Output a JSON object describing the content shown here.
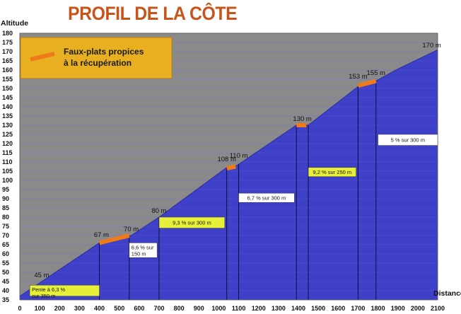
{
  "chart_data": {
    "type": "area",
    "title": "PROFIL DE LA CÔTE",
    "ylabel": "Altitude",
    "xlabel": "Distance",
    "xlim": [
      0,
      2100
    ],
    "ylim": [
      35,
      180
    ],
    "x_ticks": [
      "0",
      "100",
      "200",
      "300",
      "400",
      "500",
      "600",
      "700",
      "800",
      "900",
      "1000",
      "1100",
      "1200",
      "1300",
      "1400",
      "1500",
      "1600",
      "1700",
      "1800",
      "1900",
      "2000",
      "2100"
    ],
    "y_ticks": [
      "35",
      "40",
      "45",
      "50",
      "55",
      "60",
      "65",
      "70",
      "75",
      "80",
      "85",
      "90",
      "95",
      "100",
      "105",
      "110",
      "115",
      "120",
      "125",
      "130",
      "135",
      "140",
      "145",
      "150",
      "155",
      "160",
      "165",
      "170",
      "175",
      "180"
    ],
    "profile": [
      {
        "x": 0,
        "y": 37
      },
      {
        "x": 110,
        "y": 45
      },
      {
        "x": 400,
        "y": 66
      },
      {
        "x": 440,
        "y": 67
      },
      {
        "x": 560,
        "y": 70
      },
      {
        "x": 700,
        "y": 80
      },
      {
        "x": 1040,
        "y": 107
      },
      {
        "x": 1090,
        "y": 108
      },
      {
        "x": 1390,
        "y": 130
      },
      {
        "x": 1450,
        "y": 130
      },
      {
        "x": 1700,
        "y": 151
      },
      {
        "x": 1790,
        "y": 154
      },
      {
        "x": 1890,
        "y": 160
      },
      {
        "x": 2100,
        "y": 171
      }
    ],
    "segment_boundaries_x": [
      400,
      550,
      700,
      1040,
      1100,
      1390,
      1450,
      1700,
      1790
    ],
    "flats": [
      {
        "x1": 400,
        "y1": 66,
        "x2": 550,
        "y2": 70
      },
      {
        "x1": 1040,
        "y1": 106.5,
        "x2": 1085,
        "y2": 107.5
      },
      {
        "x1": 1390,
        "y1": 130,
        "x2": 1440,
        "y2": 130
      },
      {
        "x1": 1700,
        "y1": 151.5,
        "x2": 1790,
        "y2": 154
      }
    ],
    "peak_labels": [
      {
        "text": "45 m",
        "x": 110,
        "y": 45
      },
      {
        "text": "67 m",
        "x": 410,
        "y": 67
      },
      {
        "text": "70 m",
        "x": 560,
        "y": 70
      },
      {
        "text": "80 m",
        "x": 700,
        "y": 80
      },
      {
        "text": "108 m",
        "x": 1040,
        "y": 108
      },
      {
        "text": "110 m",
        "x": 1100,
        "y": 110
      },
      {
        "text": "130 m",
        "x": 1420,
        "y": 130
      },
      {
        "text": "153 m",
        "x": 1700,
        "y": 153
      },
      {
        "text": "155 m",
        "x": 1790,
        "y": 155
      },
      {
        "text": "170 m",
        "x": 2070,
        "y": 170
      }
    ],
    "grade_boxes": [
      {
        "lines": [
          "Pente à 6,3 %",
          "sur 350 m"
        ],
        "x1": 50,
        "x2": 400,
        "y1": 43,
        "y2": 37,
        "color": "#e6ef3a"
      },
      {
        "lines": [
          "6,6 % sur",
          "150 m"
        ],
        "x1": 550,
        "x2": 690,
        "y1": 66,
        "y2": 58,
        "color": "#ffffff"
      },
      {
        "lines": [
          "9,3 % sur 300 m"
        ],
        "x1": 700,
        "x2": 1030,
        "y1": 80,
        "y2": 74,
        "color": "#e6ef3a"
      },
      {
        "lines": [
          "6,7 % sur 300 m"
        ],
        "x1": 1100,
        "x2": 1380,
        "y1": 93,
        "y2": 88,
        "color": "#ffffff"
      },
      {
        "lines": [
          "9,2 % sur 250 m"
        ],
        "x1": 1450,
        "x2": 1690,
        "y1": 107,
        "y2": 102,
        "color": "#e6ef3a"
      },
      {
        "lines": [
          "5 % sur 300 m"
        ],
        "x1": 1800,
        "x2": 2100,
        "y1": 125,
        "y2": 119,
        "color": "#ffffff"
      }
    ],
    "legend": {
      "text_lines": [
        "Faux-plats propices",
        "à la récupération"
      ],
      "position": "top-left",
      "marker_color": "#f07a1a",
      "box_color": "#e8b020"
    },
    "colors": {
      "sky": "#8a8a8a",
      "slope": "#3f40c8",
      "flat": "#f07a1a"
    },
    "grid": true
  }
}
